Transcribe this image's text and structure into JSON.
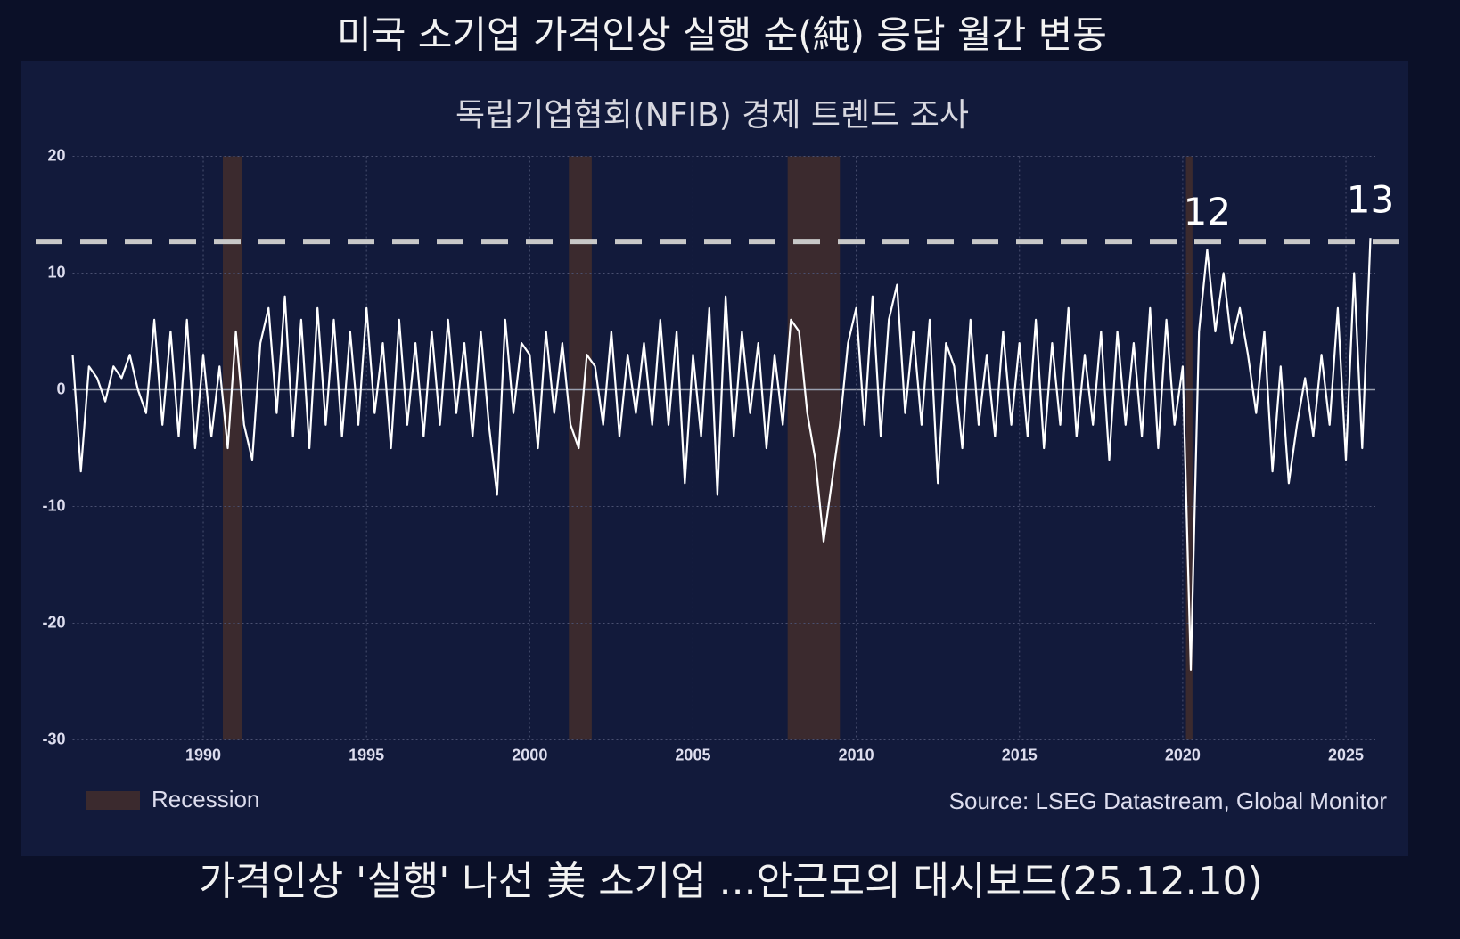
{
  "chart_data": {
    "type": "line",
    "title": "미국  소기업 가격인상 실행 순(純) 응답 월간 변동",
    "subtitle": "독립기업협회(NFIB) 경제 트렌드 조사",
    "source": "Source: LSEG Datastream, Global Monitor",
    "caption": "가격인상 '실행' 나선 美 소기업 ...안근모의 대시보드(25.12.10)",
    "color": "#ffffff",
    "x": [
      1986,
      1986.25,
      1986.5,
      1986.75,
      1987,
      1987.25,
      1987.5,
      1987.75,
      1988,
      1988.25,
      1988.5,
      1988.75,
      1989,
      1989.25,
      1989.5,
      1989.75,
      1990,
      1990.25,
      1990.5,
      1990.75,
      1991,
      1991.25,
      1991.5,
      1991.75,
      1992,
      1992.25,
      1992.5,
      1992.75,
      1993,
      1993.25,
      1993.5,
      1993.75,
      1994,
      1994.25,
      1994.5,
      1994.75,
      1995,
      1995.25,
      1995.5,
      1995.75,
      1996,
      1996.25,
      1996.5,
      1996.75,
      1997,
      1997.25,
      1997.5,
      1997.75,
      1998,
      1998.25,
      1998.5,
      1998.75,
      1999,
      1999.25,
      1999.5,
      1999.75,
      2000,
      2000.25,
      2000.5,
      2000.75,
      2001,
      2001.25,
      2001.5,
      2001.75,
      2002,
      2002.25,
      2002.5,
      2002.75,
      2003,
      2003.25,
      2003.5,
      2003.75,
      2004,
      2004.25,
      2004.5,
      2004.75,
      2005,
      2005.25,
      2005.5,
      2005.75,
      2006,
      2006.25,
      2006.5,
      2006.75,
      2007,
      2007.25,
      2007.5,
      2007.75,
      2008,
      2008.25,
      2008.5,
      2008.75,
      2009,
      2009.25,
      2009.5,
      2009.75,
      2010,
      2010.25,
      2010.5,
      2010.75,
      2011,
      2011.25,
      2011.5,
      2011.75,
      2012,
      2012.25,
      2012.5,
      2012.75,
      2013,
      2013.25,
      2013.5,
      2013.75,
      2014,
      2014.25,
      2014.5,
      2014.75,
      2015,
      2015.25,
      2015.5,
      2015.75,
      2016,
      2016.25,
      2016.5,
      2016.75,
      2017,
      2017.25,
      2017.5,
      2017.75,
      2018,
      2018.25,
      2018.5,
      2018.75,
      2019,
      2019.25,
      2019.5,
      2019.75,
      2020,
      2020.25,
      2020.5,
      2020.75,
      2021,
      2021.25,
      2021.5,
      2021.75,
      2022,
      2022.25,
      2022.5,
      2022.75,
      2023,
      2023.25,
      2023.5,
      2023.75,
      2024,
      2024.25,
      2024.5,
      2024.75,
      2025,
      2025.25,
      2025.5,
      2025.75
    ],
    "values": [
      3,
      -7,
      2,
      1,
      -1,
      2,
      1,
      3,
      0,
      -2,
      6,
      -3,
      5,
      -4,
      6,
      -5,
      3,
      -4,
      2,
      -5,
      5,
      -3,
      -6,
      4,
      7,
      -2,
      8,
      -4,
      6,
      -5,
      7,
      -3,
      6,
      -4,
      5,
      -3,
      7,
      -2,
      4,
      -5,
      6,
      -3,
      4,
      -4,
      5,
      -3,
      6,
      -2,
      4,
      -4,
      5,
      -3,
      -9,
      6,
      -2,
      4,
      3,
      -5,
      5,
      -2,
      4,
      -3,
      -5,
      3,
      2,
      -3,
      5,
      -4,
      3,
      -2,
      4,
      -3,
      6,
      -3,
      5,
      -8,
      3,
      -4,
      7,
      -9,
      8,
      -4,
      5,
      -2,
      4,
      -5,
      3,
      -3,
      6,
      5,
      -2,
      -6,
      -13,
      -8,
      -3,
      4,
      7,
      -3,
      8,
      -4,
      6,
      9,
      -2,
      5,
      -3,
      6,
      -8,
      4,
      2,
      -5,
      6,
      -3,
      3,
      -4,
      5,
      -3,
      4,
      -4,
      6,
      -5,
      4,
      -3,
      7,
      -4,
      3,
      -3,
      5,
      -6,
      5,
      -3,
      4,
      -4,
      7,
      -5,
      6,
      -3,
      2,
      -24,
      5,
      12,
      5,
      10,
      4,
      7,
      3,
      -2,
      5,
      -7,
      2,
      -8,
      -3,
      1,
      -4,
      3,
      -3,
      7,
      -6,
      10,
      -5,
      13
    ],
    "xlim": [
      1986,
      2025.9
    ],
    "ylim": [
      -30,
      20
    ],
    "xticks": [
      1990,
      1995,
      2000,
      2005,
      2010,
      2015,
      2020,
      2025
    ],
    "yticks": [
      -30,
      -20,
      -10,
      0,
      10,
      20
    ],
    "grid": true,
    "recessions": [
      [
        1990.6,
        1991.2
      ],
      [
        2001.2,
        2001.9
      ],
      [
        2007.9,
        2009.5
      ],
      [
        2020.1,
        2020.3
      ]
    ],
    "recession_color": "#3b2a2e",
    "legend": "Recession",
    "reference_line": 12.7,
    "annotations": [
      {
        "text": "12",
        "x": 2020.75,
        "y": 12
      },
      {
        "text": "13",
        "x": 2025.75,
        "y": 13
      }
    ]
  }
}
